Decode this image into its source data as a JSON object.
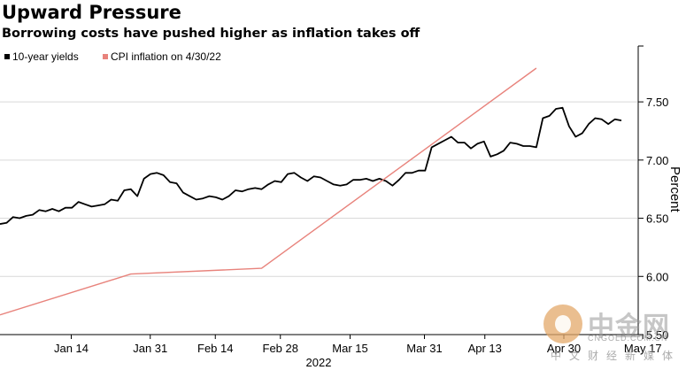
{
  "header": {
    "title": "Upward Pressure",
    "subtitle": "Borrowing costs have pushed higher as inflation takes off"
  },
  "chart_data": {
    "type": "line",
    "title": "Upward Pressure",
    "subtitle": "Borrowing costs have pushed higher as inflation takes off",
    "ylabel": "Percent",
    "xlabel": "2022",
    "ylim": [
      5.5,
      7.98
    ],
    "y_ticks": [
      "5.50",
      "6.00",
      "6.50",
      "7.00",
      "7.50"
    ],
    "x_tick_labels": [
      {
        "label": "Jan 14",
        "t": 14
      },
      {
        "label": "Jan 31",
        "t": 31
      },
      {
        "label": "Feb 14",
        "t": 45
      },
      {
        "label": "Feb 28",
        "t": 59
      },
      {
        "label": "Mar 15",
        "t": 74
      },
      {
        "label": "Mar 31",
        "t": 90
      },
      {
        "label": "Apr 13",
        "t": 103
      },
      {
        "label": "Apr 30",
        "t": 120
      },
      {
        "label": "May 17",
        "t": 137
      }
    ],
    "year_label": "2022",
    "grid": true,
    "legend_position": "top-left",
    "series": [
      {
        "name": "10-year yields",
        "color": "#000000",
        "points": [
          [
            0,
            6.45
          ],
          [
            1,
            6.46
          ],
          [
            2,
            6.51
          ],
          [
            3,
            6.5
          ],
          [
            4,
            6.52
          ],
          [
            5,
            6.53
          ],
          [
            6,
            6.57
          ],
          [
            7,
            6.56
          ],
          [
            8,
            6.58
          ],
          [
            9,
            6.56
          ],
          [
            10,
            6.59
          ],
          [
            11,
            6.59
          ],
          [
            12,
            6.64
          ],
          [
            13,
            6.62
          ],
          [
            14,
            6.6
          ],
          [
            15,
            6.61
          ],
          [
            16,
            6.62
          ],
          [
            17,
            6.66
          ],
          [
            18,
            6.65
          ],
          [
            19,
            6.74
          ],
          [
            20,
            6.75
          ],
          [
            21,
            6.69
          ],
          [
            22,
            6.84
          ],
          [
            23,
            6.88
          ],
          [
            24,
            6.89
          ],
          [
            25,
            6.87
          ],
          [
            26,
            6.81
          ],
          [
            27,
            6.8
          ],
          [
            28,
            6.72
          ],
          [
            29,
            6.69
          ],
          [
            30,
            6.66
          ],
          [
            31,
            6.67
          ],
          [
            32,
            6.69
          ],
          [
            33,
            6.68
          ],
          [
            34,
            6.66
          ],
          [
            35,
            6.69
          ],
          [
            36,
            6.74
          ],
          [
            37,
            6.73
          ],
          [
            38,
            6.75
          ],
          [
            39,
            6.76
          ],
          [
            40,
            6.75
          ],
          [
            41,
            6.79
          ],
          [
            42,
            6.82
          ],
          [
            43,
            6.81
          ],
          [
            44,
            6.88
          ],
          [
            45,
            6.89
          ],
          [
            46,
            6.85
          ],
          [
            47,
            6.82
          ],
          [
            48,
            6.86
          ],
          [
            49,
            6.85
          ],
          [
            50,
            6.82
          ],
          [
            51,
            6.79
          ],
          [
            52,
            6.78
          ],
          [
            53,
            6.79
          ],
          [
            54,
            6.83
          ],
          [
            55,
            6.83
          ],
          [
            56,
            6.84
          ],
          [
            57,
            6.82
          ],
          [
            58,
            6.84
          ],
          [
            59,
            6.82
          ],
          [
            60,
            6.78
          ],
          [
            61,
            6.83
          ],
          [
            62,
            6.89
          ],
          [
            63,
            6.89
          ],
          [
            64,
            6.91
          ],
          [
            65,
            6.91
          ],
          [
            66,
            7.11
          ],
          [
            67,
            7.14
          ],
          [
            68,
            7.17
          ],
          [
            69,
            7.2
          ],
          [
            70,
            7.15
          ],
          [
            71,
            7.15
          ],
          [
            72,
            7.1
          ],
          [
            73,
            7.14
          ],
          [
            74,
            7.16
          ],
          [
            75,
            7.03
          ],
          [
            76,
            7.05
          ],
          [
            77,
            7.08
          ],
          [
            78,
            7.15
          ],
          [
            79,
            7.14
          ],
          [
            80,
            7.12
          ],
          [
            81,
            7.12
          ],
          [
            82,
            7.11
          ],
          [
            83,
            7.36
          ],
          [
            84,
            7.38
          ],
          [
            85,
            7.44
          ],
          [
            86,
            7.45
          ],
          [
            87,
            7.29
          ],
          [
            88,
            7.2
          ],
          [
            89,
            7.23
          ],
          [
            90,
            7.31
          ],
          [
            91,
            7.36
          ],
          [
            92,
            7.35
          ],
          [
            93,
            7.31
          ],
          [
            94,
            7.35
          ],
          [
            95,
            7.34
          ]
        ]
      },
      {
        "name": "CPI inflation on 4/30/22",
        "color": "#e8837c",
        "points": [
          [
            0,
            5.67
          ],
          [
            20,
            6.02
          ],
          [
            40,
            6.07
          ],
          [
            82,
            7.79
          ]
        ]
      }
    ]
  },
  "watermark": {
    "main": "中金网",
    "url": "CNGOLD.COM.CN",
    "sub": "中文财经新媒体"
  }
}
